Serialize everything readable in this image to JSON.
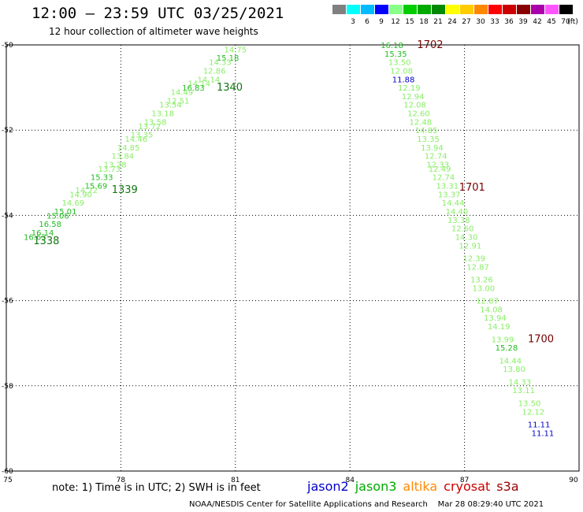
{
  "header": {
    "title": "12:00 – 23:59 UTC 03/25/2021",
    "subtitle": "12 hour collection of altimeter wave heights"
  },
  "color_scale": {
    "unit": "(ft)",
    "swatches": [
      {
        "label": "",
        "color": "#808080"
      },
      {
        "label": "3",
        "color": "#00ffff"
      },
      {
        "label": "6",
        "color": "#00bbff"
      },
      {
        "label": "9",
        "color": "#0000ff"
      },
      {
        "label": "12",
        "color": "#88ff88"
      },
      {
        "label": "15",
        "color": "#00cc00"
      },
      {
        "label": "18",
        "color": "#00aa00"
      },
      {
        "label": "21",
        "color": "#008800"
      },
      {
        "label": "24",
        "color": "#ffff00"
      },
      {
        "label": "27",
        "color": "#ffcc00"
      },
      {
        "label": "30",
        "color": "#ff8800"
      },
      {
        "label": "33",
        "color": "#ff0000"
      },
      {
        "label": "36",
        "color": "#cc0000"
      },
      {
        "label": "39",
        "color": "#880000"
      },
      {
        "label": "42",
        "color": "#aa00aa"
      },
      {
        "label": "45",
        "color": "#ff55ff"
      },
      {
        "label": "70",
        "color": "#000000"
      }
    ]
  },
  "map": {
    "lon_range": [
      75,
      90
    ],
    "lat_range": [
      -50,
      -60
    ],
    "x_ticks": [
      "75",
      "78",
      "81",
      "84",
      "87",
      "90"
    ],
    "y_ticks": [
      "-50",
      "-52",
      "-54",
      "-56",
      "-58",
      "-60"
    ],
    "colors": {
      "light": "#88ee66",
      "mid": "#22bb22",
      "dark": "#117711",
      "blue": "#0000cc",
      "pass": "#770000"
    },
    "track_west": [
      {
        "lon": 81.0,
        "lat": -50.1,
        "v": "14.75",
        "c": "light"
      },
      {
        "lon": 80.8,
        "lat": -50.3,
        "v": "15.18",
        "c": "mid"
      },
      {
        "lon": 80.6,
        "lat": -50.4,
        "v": "14.33",
        "c": "light"
      },
      {
        "lon": 80.45,
        "lat": -50.6,
        "v": "12.86",
        "c": "light"
      },
      {
        "lon": 80.3,
        "lat": -50.8,
        "v": "14.14",
        "c": "light"
      },
      {
        "lon": 80.05,
        "lat": -50.9,
        "v": "14.14",
        "c": "light"
      },
      {
        "lon": 79.9,
        "lat": -51.0,
        "v": "16.83",
        "c": "mid"
      },
      {
        "lon": 79.6,
        "lat": -51.1,
        "v": "14.49",
        "c": "light"
      },
      {
        "lon": 79.5,
        "lat": -51.3,
        "v": "12.51",
        "c": "light"
      },
      {
        "lon": 79.3,
        "lat": -51.4,
        "v": "13.54",
        "c": "light"
      },
      {
        "lon": 79.1,
        "lat": -51.6,
        "v": "13.18",
        "c": "light"
      },
      {
        "lon": 78.9,
        "lat": -51.8,
        "v": "13.58",
        "c": "light"
      },
      {
        "lon": 78.75,
        "lat": -51.9,
        "v": "13.72",
        "c": "light"
      },
      {
        "lon": 78.55,
        "lat": -52.1,
        "v": "13.35",
        "c": "light"
      },
      {
        "lon": 78.4,
        "lat": -52.2,
        "v": "14.46",
        "c": "light"
      },
      {
        "lon": 78.2,
        "lat": -52.4,
        "v": "14.85",
        "c": "light"
      },
      {
        "lon": 78.05,
        "lat": -52.6,
        "v": "13.84",
        "c": "light"
      },
      {
        "lon": 77.85,
        "lat": -52.8,
        "v": "13.28",
        "c": "light"
      },
      {
        "lon": 77.7,
        "lat": -52.9,
        "v": "13.73",
        "c": "light"
      },
      {
        "lon": 77.5,
        "lat": -53.1,
        "v": "15.33",
        "c": "mid"
      },
      {
        "lon": 77.35,
        "lat": -53.3,
        "v": "15.69",
        "c": "mid"
      },
      {
        "lon": 77.1,
        "lat": -53.4,
        "v": "14.72",
        "c": "light"
      },
      {
        "lon": 76.95,
        "lat": -53.5,
        "v": "14.90",
        "c": "light"
      },
      {
        "lon": 76.75,
        "lat": -53.7,
        "v": "14.69",
        "c": "light"
      },
      {
        "lon": 76.55,
        "lat": -53.9,
        "v": "15.01",
        "c": "mid"
      },
      {
        "lon": 76.35,
        "lat": -54.0,
        "v": "15.06",
        "c": "mid"
      },
      {
        "lon": 76.15,
        "lat": -54.2,
        "v": "16.58",
        "c": "mid"
      },
      {
        "lon": 75.95,
        "lat": -54.4,
        "v": "16.14",
        "c": "mid"
      },
      {
        "lon": 75.75,
        "lat": -54.5,
        "v": "16.63",
        "c": "mid"
      }
    ],
    "track_east": [
      {
        "lon": 85.1,
        "lat": -50.0,
        "v": "16.18",
        "c": "mid"
      },
      {
        "lon": 85.2,
        "lat": -50.2,
        "v": "15.35",
        "c": "mid"
      },
      {
        "lon": 85.3,
        "lat": -50.4,
        "v": "13.50",
        "c": "light"
      },
      {
        "lon": 85.35,
        "lat": -50.6,
        "v": "12.08",
        "c": "light"
      },
      {
        "lon": 85.4,
        "lat": -50.8,
        "v": "11.88",
        "c": "blue"
      },
      {
        "lon": 85.55,
        "lat": -51.0,
        "v": "12.19",
        "c": "light"
      },
      {
        "lon": 85.65,
        "lat": -51.2,
        "v": "12.94",
        "c": "light"
      },
      {
        "lon": 85.7,
        "lat": -51.4,
        "v": "12.08",
        "c": "light"
      },
      {
        "lon": 85.8,
        "lat": -51.6,
        "v": "12.60",
        "c": "light"
      },
      {
        "lon": 85.85,
        "lat": -51.8,
        "v": "12.48",
        "c": "light"
      },
      {
        "lon": 86.0,
        "lat": -52.0,
        "v": "14.85",
        "c": "light"
      },
      {
        "lon": 86.05,
        "lat": -52.2,
        "v": "13.35",
        "c": "light"
      },
      {
        "lon": 86.15,
        "lat": -52.4,
        "v": "13.94",
        "c": "light"
      },
      {
        "lon": 86.25,
        "lat": -52.6,
        "v": "12.74",
        "c": "light"
      },
      {
        "lon": 86.3,
        "lat": -52.8,
        "v": "12.33",
        "c": "light"
      },
      {
        "lon": 86.35,
        "lat": -52.9,
        "v": "12.49",
        "c": "light"
      },
      {
        "lon": 86.45,
        "lat": -53.1,
        "v": "12.74",
        "c": "light"
      },
      {
        "lon": 86.55,
        "lat": -53.3,
        "v": "13.31",
        "c": "light"
      },
      {
        "lon": 86.6,
        "lat": -53.5,
        "v": "13.37",
        "c": "light"
      },
      {
        "lon": 86.7,
        "lat": -53.7,
        "v": "14.44",
        "c": "light"
      },
      {
        "lon": 86.8,
        "lat": -53.9,
        "v": "14.40",
        "c": "light"
      },
      {
        "lon": 86.85,
        "lat": -54.1,
        "v": "13.38",
        "c": "light"
      },
      {
        "lon": 86.95,
        "lat": -54.3,
        "v": "12.60",
        "c": "light"
      },
      {
        "lon": 87.05,
        "lat": -54.5,
        "v": "14.30",
        "c": "light"
      },
      {
        "lon": 87.15,
        "lat": -54.7,
        "v": "12.91",
        "c": "light"
      },
      {
        "lon": 87.25,
        "lat": -55.0,
        "v": "12.39",
        "c": "light"
      },
      {
        "lon": 87.35,
        "lat": -55.2,
        "v": "12.87",
        "c": "light"
      },
      {
        "lon": 87.45,
        "lat": -55.5,
        "v": "13.26",
        "c": "light"
      },
      {
        "lon": 87.5,
        "lat": -55.7,
        "v": "13.00",
        "c": "light"
      },
      {
        "lon": 87.6,
        "lat": -56.0,
        "v": "12.87",
        "c": "light"
      },
      {
        "lon": 87.7,
        "lat": -56.2,
        "v": "14.08",
        "c": "light"
      },
      {
        "lon": 87.8,
        "lat": -56.4,
        "v": "13.94",
        "c": "light"
      },
      {
        "lon": 87.9,
        "lat": -56.6,
        "v": "14.19",
        "c": "light"
      },
      {
        "lon": 88.0,
        "lat": -56.9,
        "v": "13.99",
        "c": "light"
      },
      {
        "lon": 88.1,
        "lat": -57.1,
        "v": "15.28",
        "c": "mid"
      },
      {
        "lon": 88.2,
        "lat": -57.4,
        "v": "14.44",
        "c": "light"
      },
      {
        "lon": 88.3,
        "lat": -57.6,
        "v": "13.80",
        "c": "light"
      },
      {
        "lon": 88.45,
        "lat": -57.9,
        "v": "14.33",
        "c": "light"
      },
      {
        "lon": 88.55,
        "lat": -58.1,
        "v": "13.11",
        "c": "light"
      },
      {
        "lon": 88.7,
        "lat": -58.4,
        "v": "13.50",
        "c": "light"
      },
      {
        "lon": 88.8,
        "lat": -58.6,
        "v": "12.12",
        "c": "light"
      },
      {
        "lon": 88.95,
        "lat": -58.9,
        "v": "11.11",
        "c": "blue"
      },
      {
        "lon": 89.05,
        "lat": -59.1,
        "v": "11.11",
        "c": "blue"
      }
    ],
    "pass_labels": [
      {
        "lon": 78.1,
        "lat": -53.4,
        "v": "1339",
        "c": "dark"
      },
      {
        "lon": 76.05,
        "lat": -54.6,
        "v": "1338",
        "c": "dark"
      },
      {
        "lon": 80.85,
        "lat": -51.0,
        "v": "1340",
        "c": "dark"
      },
      {
        "lon": 86.1,
        "lat": -50.0,
        "v": "1702",
        "c": "pass"
      },
      {
        "lon": 87.2,
        "lat": -53.35,
        "v": "1701",
        "c": "pass"
      },
      {
        "lon": 89.0,
        "lat": -56.9,
        "v": "1700",
        "c": "pass"
      }
    ]
  },
  "footer": {
    "note": "note: 1) Time is in UTC; 2) SWH is in feet",
    "satellites": [
      {
        "name": "jason2",
        "color": "#0000cc"
      },
      {
        "name": "jason3",
        "color": "#00aa00"
      },
      {
        "name": "altika",
        "color": "#ff8800"
      },
      {
        "name": "cryosat",
        "color": "#cc0000"
      },
      {
        "name": "s3a",
        "color": "#990000"
      }
    ],
    "credit": "NOAA/NESDIS Center for Satellite Applications and Research    Mar 28 08:29:40 UTC 2021"
  }
}
